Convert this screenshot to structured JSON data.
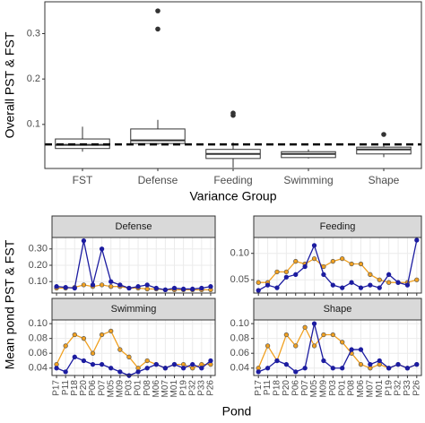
{
  "chart_data": [
    {
      "type": "box",
      "x_label": "Variance Group",
      "y_label": "Overall PST & FST",
      "categories": [
        "FST",
        "Defense",
        "Feeding",
        "Swimming",
        "Shape"
      ],
      "boxes": [
        {
          "min": 0.04,
          "q1": 0.047,
          "median": 0.055,
          "q3": 0.068,
          "max": 0.095,
          "outliers": []
        },
        {
          "min": 0.055,
          "q1": 0.058,
          "median": 0.065,
          "q3": 0.09,
          "max": 0.11,
          "outliers": [
            0.31,
            0.35
          ]
        },
        {
          "min": 0.005,
          "q1": 0.025,
          "median": 0.035,
          "q3": 0.045,
          "max": 0.06,
          "outliers": [
            0.12,
            0.125
          ]
        },
        {
          "min": 0.025,
          "q1": 0.027,
          "median": 0.035,
          "q3": 0.04,
          "max": 0.045,
          "outliers": []
        },
        {
          "min": 0.028,
          "q1": 0.035,
          "median": 0.045,
          "q3": 0.05,
          "max": 0.058,
          "outliers": [
            0.078
          ]
        }
      ],
      "hline": 0.056,
      "ylim": [
        0.003,
        0.37
      ],
      "yticks": [
        0.1,
        0.2,
        0.3
      ],
      "grid": false,
      "color": "#ffffff"
    },
    {
      "type": "line",
      "title": "Defense",
      "ylim": [
        0.03,
        0.37
      ],
      "yticks": [
        {
          "value": 0.1,
          "label": "0.10"
        },
        {
          "value": 0.2,
          "label": "0.20"
        },
        {
          "value": 0.3,
          "label": "0.30"
        }
      ],
      "grid": true,
      "series": [
        {
          "color": "#f0a020",
          "values": [
            0.06,
            0.06,
            0.065,
            0.08,
            0.07,
            0.08,
            0.07,
            0.07,
            0.06,
            0.06,
            0.055,
            0.055,
            0.05,
            0.05,
            0.05,
            0.05,
            0.05,
            0.05
          ]
        },
        {
          "color": "#1c1ca0",
          "values": [
            0.07,
            0.065,
            0.06,
            0.35,
            0.08,
            0.3,
            0.1,
            0.08,
            0.06,
            0.07,
            0.08,
            0.06,
            0.05,
            0.06,
            0.055,
            0.055,
            0.06,
            0.07
          ]
        }
      ]
    },
    {
      "type": "line",
      "title": "Feeding",
      "ylim": [
        0.025,
        0.13
      ],
      "yticks": [
        0.05,
        {
          "value": 0.1,
          "label": "0.10"
        }
      ],
      "grid": true,
      "series": [
        {
          "color": "#f0a020",
          "values": [
            0.045,
            0.045,
            0.065,
            0.065,
            0.085,
            0.08,
            0.09,
            0.075,
            0.085,
            0.09,
            0.08,
            0.08,
            0.06,
            0.05,
            0.045,
            0.045,
            0.045,
            0.05
          ]
        },
        {
          "color": "#1c1ca0",
          "values": [
            0.03,
            0.04,
            0.035,
            0.055,
            0.06,
            0.075,
            0.115,
            0.06,
            0.04,
            0.035,
            0.045,
            0.035,
            0.04,
            0.035,
            0.06,
            0.045,
            0.04,
            0.125
          ]
        }
      ]
    },
    {
      "type": "line",
      "title": "Swimming",
      "ylim": [
        0.03,
        0.105
      ],
      "yticks": [
        0.04,
        0.06,
        0.08,
        {
          "value": 0.1,
          "label": "0.10"
        }
      ],
      "grid": true,
      "series": [
        {
          "color": "#f0a020",
          "values": [
            0.045,
            0.07,
            0.085,
            0.08,
            0.06,
            0.085,
            0.09,
            0.065,
            0.055,
            0.04,
            0.05,
            0.045,
            0.04,
            0.045,
            0.045,
            0.04,
            0.045,
            0.045
          ]
        },
        {
          "color": "#1c1ca0",
          "values": [
            0.04,
            0.035,
            0.055,
            0.05,
            0.045,
            0.045,
            0.04,
            0.035,
            0.03,
            0.035,
            0.04,
            0.045,
            0.04,
            0.045,
            0.04,
            0.045,
            0.04,
            0.05
          ]
        }
      ]
    },
    {
      "type": "line",
      "title": "Shape",
      "ylim": [
        0.03,
        0.105
      ],
      "yticks": [
        0.04,
        0.06,
        0.08,
        {
          "value": 0.1,
          "label": "0.10"
        }
      ],
      "grid": true,
      "series": [
        {
          "color": "#f0a020",
          "values": [
            0.04,
            0.07,
            0.05,
            0.085,
            0.07,
            0.095,
            0.07,
            0.085,
            0.085,
            0.075,
            0.06,
            0.045,
            0.04,
            0.045,
            0.04,
            0.045,
            0.04,
            0.045
          ]
        },
        {
          "color": "#1c1ca0",
          "values": [
            0.035,
            0.04,
            0.05,
            0.045,
            0.035,
            0.04,
            0.1,
            0.05,
            0.04,
            0.04,
            0.065,
            0.065,
            0.045,
            0.05,
            0.04,
            0.045,
            0.04,
            0.045
          ]
        }
      ]
    }
  ],
  "lower": {
    "y_label": "Mean pond PST & FST",
    "x_label": "Pond",
    "ponds": [
      "P17",
      "P11",
      "P18",
      "P20",
      "P06",
      "P07",
      "M05",
      "M09",
      "P03",
      "P01",
      "P08",
      "M06",
      "M07",
      "M01",
      "P19",
      "P32",
      "P33",
      "P26"
    ]
  }
}
